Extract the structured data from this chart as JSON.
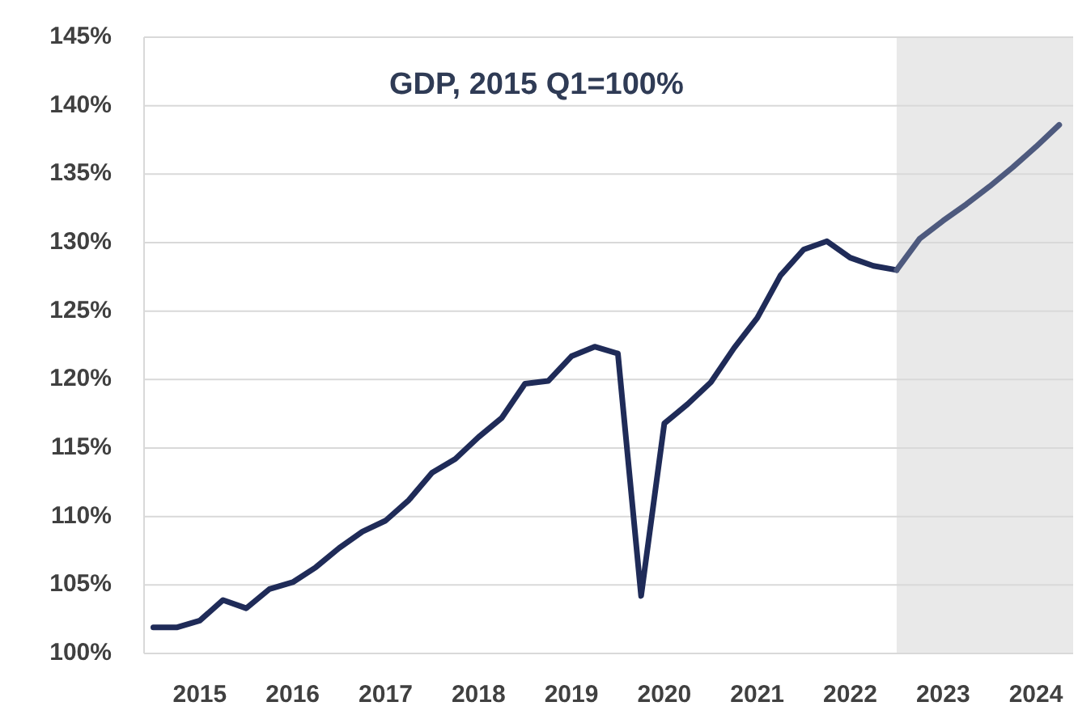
{
  "chart_data": {
    "type": "line",
    "title": "GDP, 2015 Q1=100%",
    "series": [
      {
        "color": "#1f2b58",
        "x": [
          2015,
          2015.25,
          2015.5,
          2015.75,
          2016,
          2016.25,
          2016.5,
          2016.75,
          2017,
          2017.25,
          2017.5,
          2017.75,
          2018,
          2018.25,
          2018.5,
          2018.75,
          2019,
          2019.25,
          2019.5,
          2019.75,
          2020,
          2020.25,
          2020.5,
          2020.75,
          2021,
          2021.25,
          2021.5,
          2021.75,
          2022,
          2022.25,
          2022.5,
          2022.75,
          2023
        ],
        "values": [
          101.9,
          101.9,
          102.4,
          103.9,
          103.3,
          104.7,
          105.2,
          106.3,
          107.7,
          108.9,
          109.7,
          111.2,
          113.2,
          114.2,
          115.8,
          117.2,
          119.7,
          119.9,
          121.7,
          122.4,
          121.9,
          104.2,
          116.8,
          118.2,
          119.8,
          122.3,
          124.5,
          127.6,
          129.5,
          130.1,
          128.9,
          128.3,
          128.0
        ]
      },
      {
        "color": "#4e5a7e",
        "x": [
          2023,
          2023.25,
          2023.5,
          2023.75,
          2024,
          2024.25,
          2024.5,
          2024.75
        ],
        "values": [
          128.0,
          130.3,
          131.6,
          132.8,
          134.1,
          135.5,
          137.0,
          138.6
        ]
      }
    ],
    "xlim": [
      2014.9,
      2024.9
    ],
    "xticks": [
      {
        "value": 2015.5,
        "label": "2015"
      },
      {
        "value": 2016.5,
        "label": "2016"
      },
      {
        "value": 2017.5,
        "label": "2017"
      },
      {
        "value": 2018.5,
        "label": "2018"
      },
      {
        "value": 2019.5,
        "label": "2019"
      },
      {
        "value": 2020.5,
        "label": "2020"
      },
      {
        "value": 2021.5,
        "label": "2021"
      },
      {
        "value": 2022.5,
        "label": "2022"
      },
      {
        "value": 2023.5,
        "label": "2023"
      },
      {
        "value": 2024.5,
        "label": "2024"
      }
    ],
    "ylim": [
      100,
      145
    ],
    "yticks": [
      {
        "value": 100,
        "label": "100%"
      },
      {
        "value": 105,
        "label": "105%"
      },
      {
        "value": 110,
        "label": "110%"
      },
      {
        "value": 115,
        "label": "115%"
      },
      {
        "value": 120,
        "label": "120%"
      },
      {
        "value": 125,
        "label": "125%"
      },
      {
        "value": 130,
        "label": "130%"
      },
      {
        "value": 135,
        "label": "135%"
      },
      {
        "value": 140,
        "label": "140%"
      },
      {
        "value": 145,
        "label": "145%"
      }
    ],
    "bands": [
      {
        "axis": "x",
        "from": 2023,
        "to": 2024.9,
        "color": "#e9e9e9"
      }
    ],
    "grid": "y",
    "marker": "none",
    "line_style": "solid"
  }
}
